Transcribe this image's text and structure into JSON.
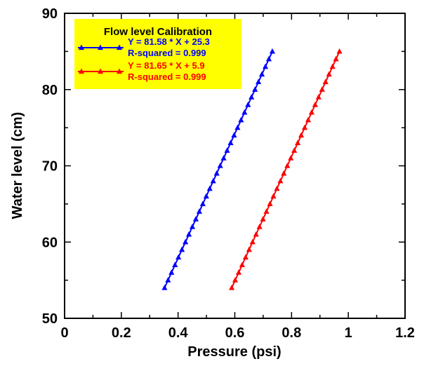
{
  "chart_data": {
    "type": "line",
    "xlabel": "Pressure (psi)",
    "ylabel": "Water level (cm)",
    "xlim": [
      0,
      1.2
    ],
    "ylim": [
      50,
      90
    ],
    "xticks": [
      "0",
      "0.2",
      "0.4",
      "0.6",
      "0.8",
      "1",
      "1.2"
    ],
    "yticks": [
      "50",
      "60",
      "70",
      "80",
      "90"
    ],
    "grid": false,
    "legend": {
      "title": "Flow level Calibration",
      "placement": "top-left",
      "background": "#ffff00"
    },
    "series": [
      {
        "name": "Y = 81.58 * X + 25.3",
        "stat": "R-squared = 0.999",
        "color": "#0000ff",
        "marker": "triangle",
        "x": [
          0.3523,
          0.3646,
          0.3768,
          0.3891,
          0.4013,
          0.4136,
          0.4259,
          0.4381,
          0.4504,
          0.4626,
          0.4749,
          0.4871,
          0.4994,
          0.5116,
          0.5239,
          0.5362,
          0.5484,
          0.5607,
          0.5729,
          0.5852,
          0.5974,
          0.6097,
          0.622,
          0.6342,
          0.6465,
          0.6587,
          0.671,
          0.6832,
          0.6955,
          0.7078,
          0.72,
          0.7323
        ],
        "y": [
          54,
          55,
          56,
          57,
          58,
          59,
          60,
          61,
          62,
          63,
          64,
          65,
          66,
          67,
          68,
          69,
          70,
          71,
          72,
          73,
          74,
          75,
          76,
          77,
          78,
          79,
          80,
          81,
          82,
          83,
          84,
          85
        ]
      },
      {
        "name": "Y = 81.65 * X + 5.9",
        "stat": "R-squared = 0.999",
        "color": "#ff0000",
        "marker": "triangle",
        "x": [
          0.5891,
          0.6013,
          0.6136,
          0.6258,
          0.6381,
          0.6503,
          0.6626,
          0.6748,
          0.6871,
          0.6993,
          0.7116,
          0.7238,
          0.7361,
          0.7483,
          0.7606,
          0.7728,
          0.785,
          0.7973,
          0.8095,
          0.8218,
          0.834,
          0.8463,
          0.8585,
          0.8708,
          0.883,
          0.8953,
          0.9075,
          0.9198,
          0.932,
          0.9443,
          0.9565,
          0.9688
        ],
        "y": [
          54,
          55,
          56,
          57,
          58,
          59,
          60,
          61,
          62,
          63,
          64,
          65,
          66,
          67,
          68,
          69,
          70,
          71,
          72,
          73,
          74,
          75,
          76,
          77,
          78,
          79,
          80,
          81,
          82,
          83,
          84,
          85
        ]
      }
    ]
  }
}
